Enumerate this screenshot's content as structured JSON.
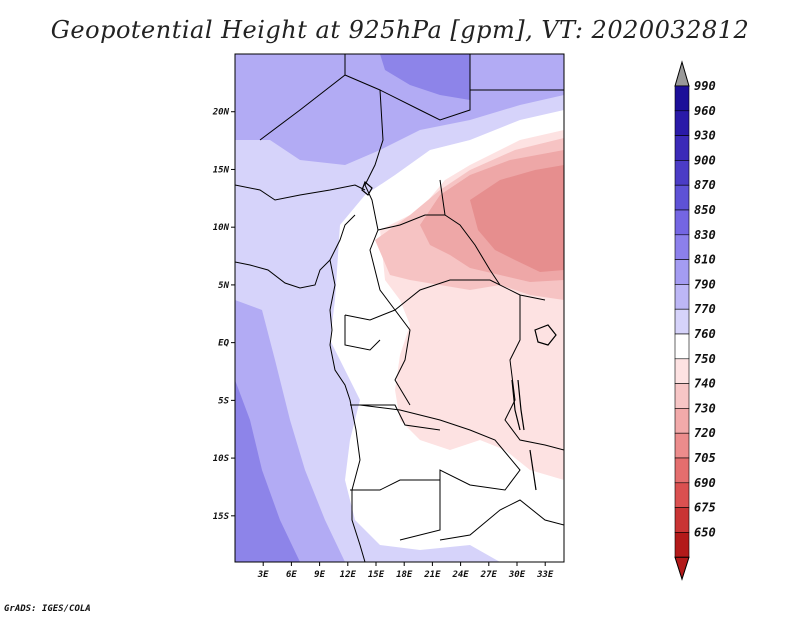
{
  "title": "Geopotential Height at 925hPa [gpm], VT: 2020032812",
  "credit": "GrADS: IGES/COLA",
  "map": {
    "lon_labels": [
      "3E",
      "6E",
      "9E",
      "12E",
      "15E",
      "18E",
      "21E",
      "24E",
      "27E",
      "30E",
      "33E"
    ],
    "lat_labels": [
      "20N",
      "15N",
      "10N",
      "5N",
      "EQ",
      "5S",
      "10S",
      "15S"
    ],
    "lon_range": [
      0,
      35
    ],
    "lat_range": [
      -19,
      25
    ]
  },
  "colorbar": {
    "labels": [
      "990",
      "960",
      "930",
      "900",
      "870",
      "850",
      "830",
      "810",
      "790",
      "770",
      "760",
      "750",
      "740",
      "730",
      "720",
      "705",
      "690",
      "675",
      "650"
    ],
    "colors": [
      "#1c0f99",
      "#2a1aa8",
      "#3b2ab8",
      "#4b3cc6",
      "#5e52d6",
      "#7466e3",
      "#8c80ec",
      "#a49cf2",
      "#bdb7f6",
      "#d6d3fa",
      "#ffffff",
      "#fde2e2",
      "#f7c6c6",
      "#f2aaaa",
      "#ec8c8c",
      "#e46e6e",
      "#da5050",
      "#c93434",
      "#b31a1a"
    ],
    "top_arrow_color": "#999999",
    "bottom_arrow_color": "#b31a1a"
  },
  "field_colors": {
    "dark_blue": "#8d84e9",
    "mid_blue": "#b2abf4",
    "light_blue": "#d6d3fa",
    "white": "#ffffff",
    "pale_pink": "#fde2e2",
    "light_pink": "#f6c3c3",
    "mid_pink": "#eea7a7",
    "dark_pink": "#e68e8e"
  }
}
